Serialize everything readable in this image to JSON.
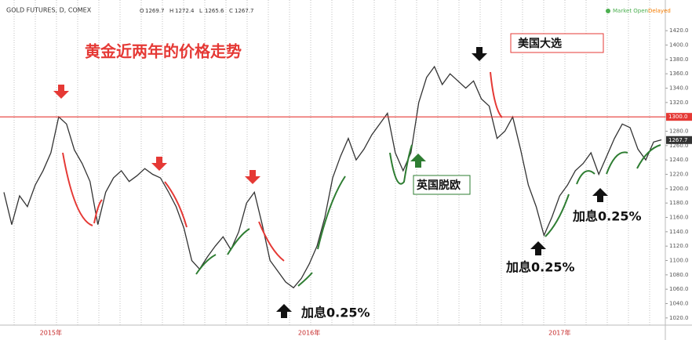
{
  "header": {
    "symbol": "GOLD FUTURES, D, COMEX",
    "ohlc": [
      {
        "label": "O",
        "value": 1269.7
      },
      {
        "label": "H",
        "value": 1272.4
      },
      {
        "label": "L",
        "value": 1265.6
      },
      {
        "label": "C",
        "value": 1267.7
      }
    ],
    "status": "Market Open",
    "delay": "Delayed"
  },
  "chart_data": {
    "type": "line",
    "title": "黄金近两年的价格走势",
    "color": "#333333",
    "categories": [
      null,
      null,
      null,
      null,
      null,
      null,
      "2015年",
      null,
      null,
      null,
      null,
      null,
      null,
      null,
      null,
      null,
      null,
      null,
      null,
      null,
      null,
      null,
      null,
      null,
      null,
      null,
      null,
      null,
      null,
      null,
      null,
      null,
      null,
      null,
      null,
      null,
      null,
      null,
      null,
      "2016年",
      null,
      null,
      null,
      null,
      null,
      null,
      null,
      null,
      null,
      null,
      null,
      null,
      null,
      null,
      null,
      null,
      null,
      null,
      null,
      null,
      null,
      null,
      null,
      null,
      null,
      null,
      null,
      null,
      null,
      null,
      null,
      "2017年",
      null,
      null,
      null,
      null,
      null,
      null,
      null,
      null,
      null,
      null,
      null,
      null,
      null
    ],
    "values": [
      1195,
      1150,
      1190,
      1175,
      1205,
      1225,
      1250,
      1300,
      1290,
      1254,
      1235,
      1210,
      1150,
      1195,
      1215,
      1225,
      1210,
      1218,
      1228,
      1220,
      1215,
      1196,
      1175,
      1145,
      1100,
      1088,
      1105,
      1120,
      1133,
      1115,
      1140,
      1180,
      1195,
      1150,
      1100,
      1085,
      1070,
      1062,
      1075,
      1095,
      1120,
      1160,
      1215,
      1245,
      1270,
      1240,
      1255,
      1275,
      1290,
      1305,
      1250,
      1225,
      1250,
      1320,
      1355,
      1370,
      1345,
      1360,
      1350,
      1340,
      1350,
      1325,
      1315,
      1270,
      1280,
      1300,
      1255,
      1205,
      1175,
      1135,
      1160,
      1190,
      1205,
      1225,
      1235,
      1250,
      1220,
      1245,
      1270,
      1290,
      1285,
      1255,
      1240,
      1265,
      1268
    ],
    "ylim": [
      1010,
      1430
    ],
    "yticks": [
      {
        "value": 1020,
        "label": "1020.0"
      },
      {
        "value": 1040,
        "label": "1040.0"
      },
      {
        "value": 1060,
        "label": "1060.0"
      },
      {
        "value": 1080,
        "label": "1080.0"
      },
      {
        "value": 1100,
        "label": "1100.0"
      },
      {
        "value": 1120,
        "label": "1120.0"
      },
      {
        "value": 1140,
        "label": "1140.0"
      },
      {
        "value": 1160,
        "label": "1160.0"
      },
      {
        "value": 1180,
        "label": "1180.0"
      },
      {
        "value": 1200,
        "label": "1200.0"
      },
      {
        "value": 1220,
        "label": "1220.0"
      },
      {
        "value": 1240,
        "label": "1240.0"
      },
      {
        "value": 1260,
        "label": "1260.0"
      },
      {
        "value": 1280,
        "label": "1280.0"
      },
      {
        "value": 1300,
        "label": "1300.0"
      },
      {
        "value": 1320,
        "label": "1320.0"
      },
      {
        "value": 1340,
        "label": "1340.0"
      },
      {
        "value": 1360,
        "label": "1360.0"
      },
      {
        "value": 1380,
        "label": "1380.0"
      },
      {
        "value": 1400,
        "label": "1400.0"
      },
      {
        "value": 1420,
        "label": "1420.0"
      }
    ],
    "reference_line": {
      "value": 1300,
      "label": "1300.0",
      "color": "#e53935"
    },
    "last_price": {
      "value": 1267.7,
      "label": "1267.7"
    },
    "annotations": {
      "election": "美国大选",
      "brexit": "英国脱欧",
      "hike1": "加息0.25%",
      "hike2": "加息0.25%",
      "hike3": "加息0.25%"
    }
  }
}
